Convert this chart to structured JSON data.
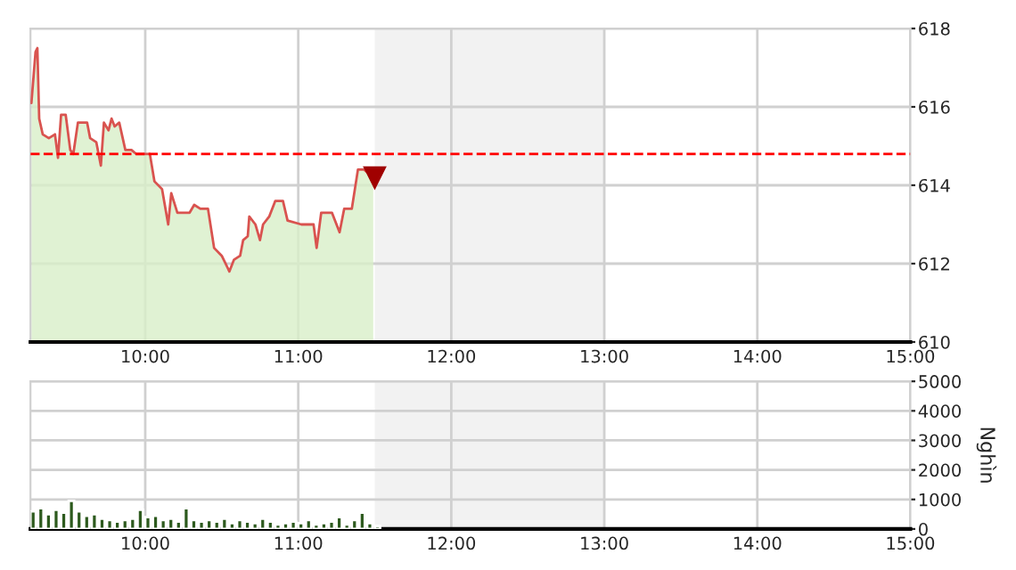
{
  "chart_data": [
    {
      "type": "area",
      "x": [
        9.256,
        9.283,
        9.295,
        9.307,
        9.33,
        9.37,
        9.41,
        9.43,
        9.45,
        9.48,
        9.51,
        9.53,
        9.56,
        9.62,
        9.64,
        9.68,
        9.71,
        9.73,
        9.76,
        9.78,
        9.8,
        9.83,
        9.87,
        9.91,
        9.94,
        10.03,
        10.06,
        10.11,
        10.15,
        10.17,
        10.21,
        10.29,
        10.32,
        10.36,
        10.41,
        10.45,
        10.5,
        10.55,
        10.58,
        10.62,
        10.64,
        10.67,
        10.68,
        10.72,
        10.75,
        10.77,
        10.81,
        10.85,
        10.9,
        10.93,
        11.02,
        11.1,
        11.12,
        11.15,
        11.22,
        11.27,
        11.3,
        11.35,
        11.39,
        11.43,
        11.49
      ],
      "series": [
        {
          "color": "#d9534f",
          "values": [
            616.1,
            617.4,
            617.5,
            615.7,
            615.3,
            615.2,
            615.3,
            614.7,
            615.8,
            615.8,
            614.9,
            614.8,
            615.6,
            615.6,
            615.2,
            615.1,
            614.5,
            615.6,
            615.4,
            615.7,
            615.5,
            615.6,
            614.9,
            614.9,
            614.8,
            614.8,
            614.1,
            613.9,
            613.0,
            613.8,
            613.3,
            613.3,
            613.5,
            613.4,
            613.4,
            612.4,
            612.2,
            611.8,
            612.1,
            612.2,
            612.6,
            612.7,
            613.2,
            613.0,
            612.6,
            613.0,
            613.2,
            613.6,
            613.6,
            613.1,
            613.0,
            613.0,
            612.4,
            613.3,
            613.3,
            612.8,
            613.4,
            613.4,
            614.4,
            614.4,
            614.2
          ]
        }
      ],
      "xlim": [
        9.25,
        15
      ],
      "xticks": [
        {
          "value": 10,
          "label": "10:00"
        },
        {
          "value": 11,
          "label": "11:00"
        },
        {
          "value": 12,
          "label": "12:00"
        },
        {
          "value": 13,
          "label": "13:00"
        },
        {
          "value": 14,
          "label": "14:00"
        },
        {
          "value": 15,
          "label": "15:00"
        }
      ],
      "ylim": [
        610,
        618
      ],
      "yticks": [
        610,
        612,
        614,
        616,
        618
      ],
      "grid": true,
      "ref_lines": [
        {
          "axis": "y",
          "value": 614.8,
          "color": "#ff0000",
          "line_style": "dashed"
        }
      ],
      "bands": [
        {
          "axis": "x",
          "from": 11.5,
          "to": 13,
          "color": "#f2f2f2"
        }
      ]
    },
    {
      "type": "bar",
      "x": [
        9.25,
        9.3,
        9.35,
        9.4,
        9.45,
        9.5,
        9.55,
        9.6,
        9.65,
        9.7,
        9.75,
        9.8,
        9.85,
        9.9,
        9.95,
        10.0,
        10.05,
        10.1,
        10.15,
        10.2,
        10.25,
        10.3,
        10.35,
        10.4,
        10.45,
        10.5,
        10.55,
        10.6,
        10.65,
        10.7,
        10.75,
        10.8,
        10.85,
        10.9,
        10.95,
        11.0,
        11.05,
        11.1,
        11.15,
        11.2,
        11.25,
        11.3,
        11.35,
        11.4,
        11.45,
        11.5
      ],
      "series": [
        {
          "color": "#2d5a1e",
          "values": [
            600,
            700,
            500,
            650,
            550,
            950,
            600,
            450,
            500,
            350,
            300,
            250,
            300,
            350,
            650,
            400,
            450,
            300,
            350,
            250,
            700,
            300,
            250,
            300,
            250,
            350,
            200,
            300,
            250,
            200,
            350,
            250,
            150,
            200,
            250,
            200,
            300,
            150,
            200,
            250,
            400,
            150,
            300,
            550,
            200,
            100
          ]
        }
      ],
      "xlim": [
        9.25,
        15
      ],
      "xticks": [
        {
          "value": 10,
          "label": "10:00"
        },
        {
          "value": 11,
          "label": "11:00"
        },
        {
          "value": 12,
          "label": "12:00"
        },
        {
          "value": 13,
          "label": "13:00"
        },
        {
          "value": 14,
          "label": "14:00"
        },
        {
          "value": 15,
          "label": "15:00"
        }
      ],
      "ylim": [
        0,
        5000
      ],
      "yticks": [
        0,
        1000,
        2000,
        3000,
        4000,
        5000
      ],
      "ylabel": "Nghìn",
      "grid": true,
      "bands": [
        {
          "axis": "x",
          "from": 11.5,
          "to": 13,
          "color": "#f2f2f2"
        }
      ]
    }
  ]
}
